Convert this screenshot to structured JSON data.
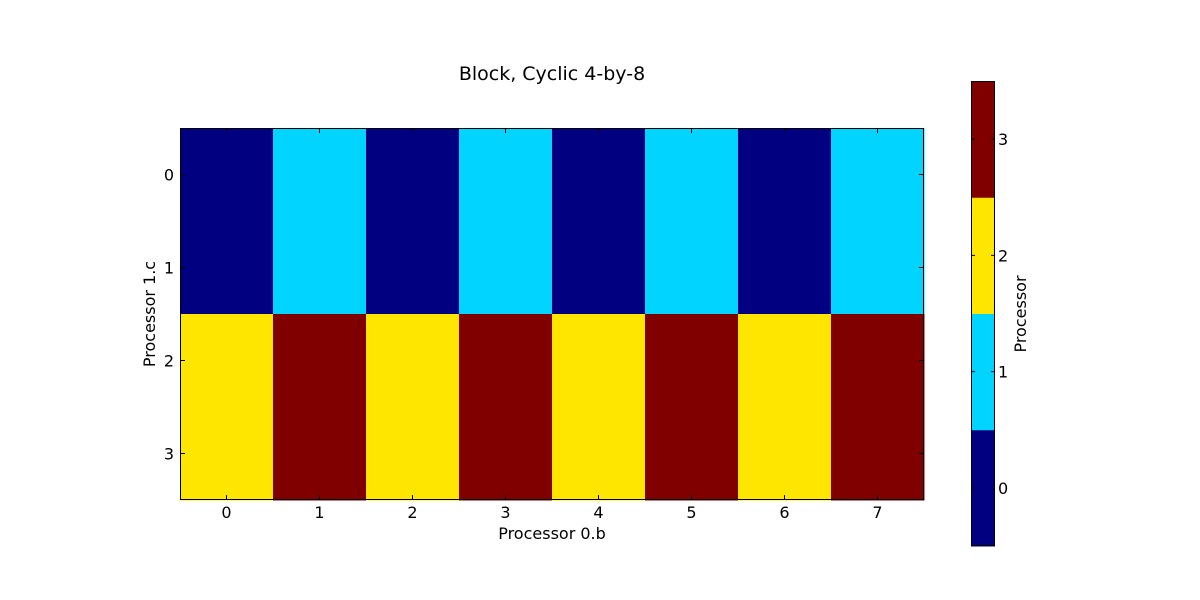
{
  "chart_data": {
    "type": "heatmap",
    "title": "Block, Cyclic 4-by-8",
    "xlabel": "Processor 0.b",
    "ylabel": "Processor 1.c",
    "x_ticks": [
      "0",
      "1",
      "2",
      "3",
      "4",
      "5",
      "6",
      "7"
    ],
    "y_ticks": [
      "0",
      "1",
      "2",
      "3"
    ],
    "values": [
      [
        0,
        1,
        0,
        1,
        0,
        1,
        0,
        1
      ],
      [
        0,
        1,
        0,
        1,
        0,
        1,
        0,
        1
      ],
      [
        2,
        3,
        2,
        3,
        2,
        3,
        2,
        3
      ],
      [
        2,
        3,
        2,
        3,
        2,
        3,
        2,
        3
      ]
    ],
    "colorbar": {
      "label": "Processor",
      "ticks": [
        "0",
        "1",
        "2",
        "3"
      ],
      "colors": [
        "#000080",
        "#00d4ff",
        "#ffe600",
        "#800000"
      ]
    },
    "grid": false,
    "legend": "colorbar-right"
  }
}
